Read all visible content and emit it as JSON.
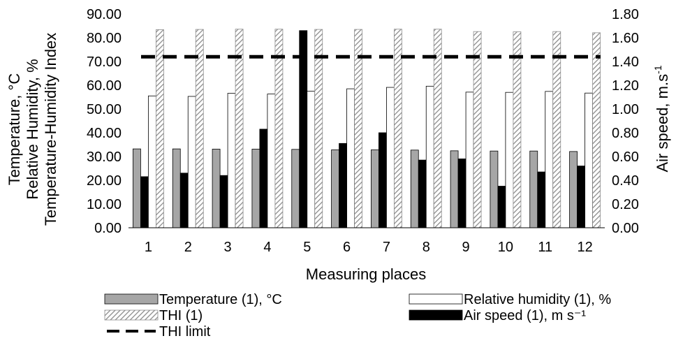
{
  "chart_data": {
    "type": "bar",
    "xlabel": "Measuring places",
    "ylabel_lines": [
      "Temperature, °C",
      "Relative Humidity, %",
      "Temperature-Humidity Index"
    ],
    "y2label": "Air speed, m.s",
    "y2label_sup": "-1",
    "categories": [
      "1",
      "2",
      "3",
      "4",
      "5",
      "6",
      "7",
      "8",
      "9",
      "10",
      "11",
      "12"
    ],
    "ylim": [
      0,
      90
    ],
    "yticks": [
      "0.00",
      "10.00",
      "20.00",
      "30.00",
      "40.00",
      "50.00",
      "60.00",
      "70.00",
      "80.00",
      "90.00"
    ],
    "y2lim": [
      0,
      1.8
    ],
    "y2ticks": [
      "0.00",
      "0.20",
      "0.40",
      "0.60",
      "0.80",
      "1.00",
      "1.20",
      "1.40",
      "1.60",
      "1.80"
    ],
    "series": [
      {
        "name": "Temperature (1), °C",
        "axis": "left",
        "style": "gray",
        "color": "#a6a6a6",
        "values": [
          33.2,
          33.2,
          33.1,
          33.1,
          33.0,
          32.8,
          32.8,
          32.7,
          32.4,
          32.3,
          32.3,
          32.1
        ]
      },
      {
        "name": "Air speed (1), m s⁻¹",
        "axis": "right",
        "style": "black",
        "color": "#000000",
        "values": [
          0.43,
          0.46,
          0.44,
          0.83,
          1.66,
          0.71,
          0.8,
          0.57,
          0.58,
          0.35,
          0.47,
          0.52
        ]
      },
      {
        "name": "Relative humidity (1), %",
        "axis": "left",
        "style": "white",
        "color": "#ffffff",
        "values": [
          55.5,
          55.3,
          56.6,
          56.3,
          57.5,
          58.5,
          59.1,
          59.6,
          57.1,
          57.0,
          57.4,
          56.7
        ]
      },
      {
        "name": "THI (1)",
        "axis": "left",
        "style": "hatch",
        "color": "#ffffff",
        "values": [
          83.4,
          83.5,
          83.6,
          83.6,
          83.5,
          83.5,
          83.6,
          83.6,
          82.6,
          82.5,
          82.6,
          82.1
        ]
      }
    ],
    "thi_limit": {
      "name": "THI limit",
      "value": 72
    },
    "legend": {
      "placement": "bottom",
      "items": [
        {
          "label": "Temperature (1), °C",
          "style": "gray"
        },
        {
          "label": "Relative humidity (1), %",
          "style": "white"
        },
        {
          "label": "THI (1)",
          "style": "hatch"
        },
        {
          "label": "Air speed (1), m s⁻¹",
          "style": "black"
        },
        {
          "label": "THI limit",
          "style": "dash"
        }
      ]
    },
    "grid": false
  }
}
